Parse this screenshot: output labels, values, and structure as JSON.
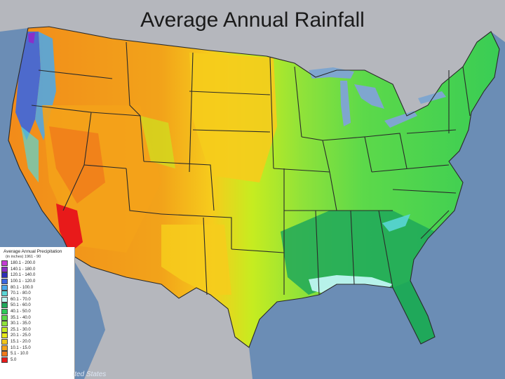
{
  "title": "Average Annual Rainfall",
  "legend": {
    "title": "Average Annual Precipitation",
    "subtitle": "(in inches) 1961 - 90",
    "classes": [
      {
        "label": "180.1 - 200.0",
        "color": "#c43cd6"
      },
      {
        "label": "140.1 - 180.0",
        "color": "#8a2fc9"
      },
      {
        "label": "120.1 - 140.0",
        "color": "#2b2fb8"
      },
      {
        "label": "100.1 - 120.0",
        "color": "#3b66e0"
      },
      {
        "label": "80.1 - 100.0",
        "color": "#4aa8ec"
      },
      {
        "label": "70.1 - 80.0",
        "color": "#5ad6d6"
      },
      {
        "label": "60.1 - 70.0",
        "color": "#bff6f2"
      },
      {
        "label": "50.1 - 60.0",
        "color": "#1fa85a"
      },
      {
        "label": "40.1 - 50.0",
        "color": "#2ec95a"
      },
      {
        "label": "35.1 - 40.0",
        "color": "#5cd94a"
      },
      {
        "label": "30.1 - 35.0",
        "color": "#8fe23a"
      },
      {
        "label": "25.1 - 30.0",
        "color": "#c6ec20"
      },
      {
        "label": "20.1 - 25.0",
        "color": "#e8e81a"
      },
      {
        "label": "15.1 - 20.0",
        "color": "#f2c61a"
      },
      {
        "label": "10.1 - 15.0",
        "color": "#f4a21a"
      },
      {
        "label": "5.1 - 10.0",
        "color": "#f07a1a"
      },
      {
        "label": "5.0",
        "color": "#e81a1a"
      }
    ]
  },
  "source": "ited States",
  "colors": {
    "ocean": "#6b8db5",
    "neighbor_land": "#b5b7bd",
    "great_lakes": "#7fa6cf",
    "state_border": "#2a2a2a"
  }
}
